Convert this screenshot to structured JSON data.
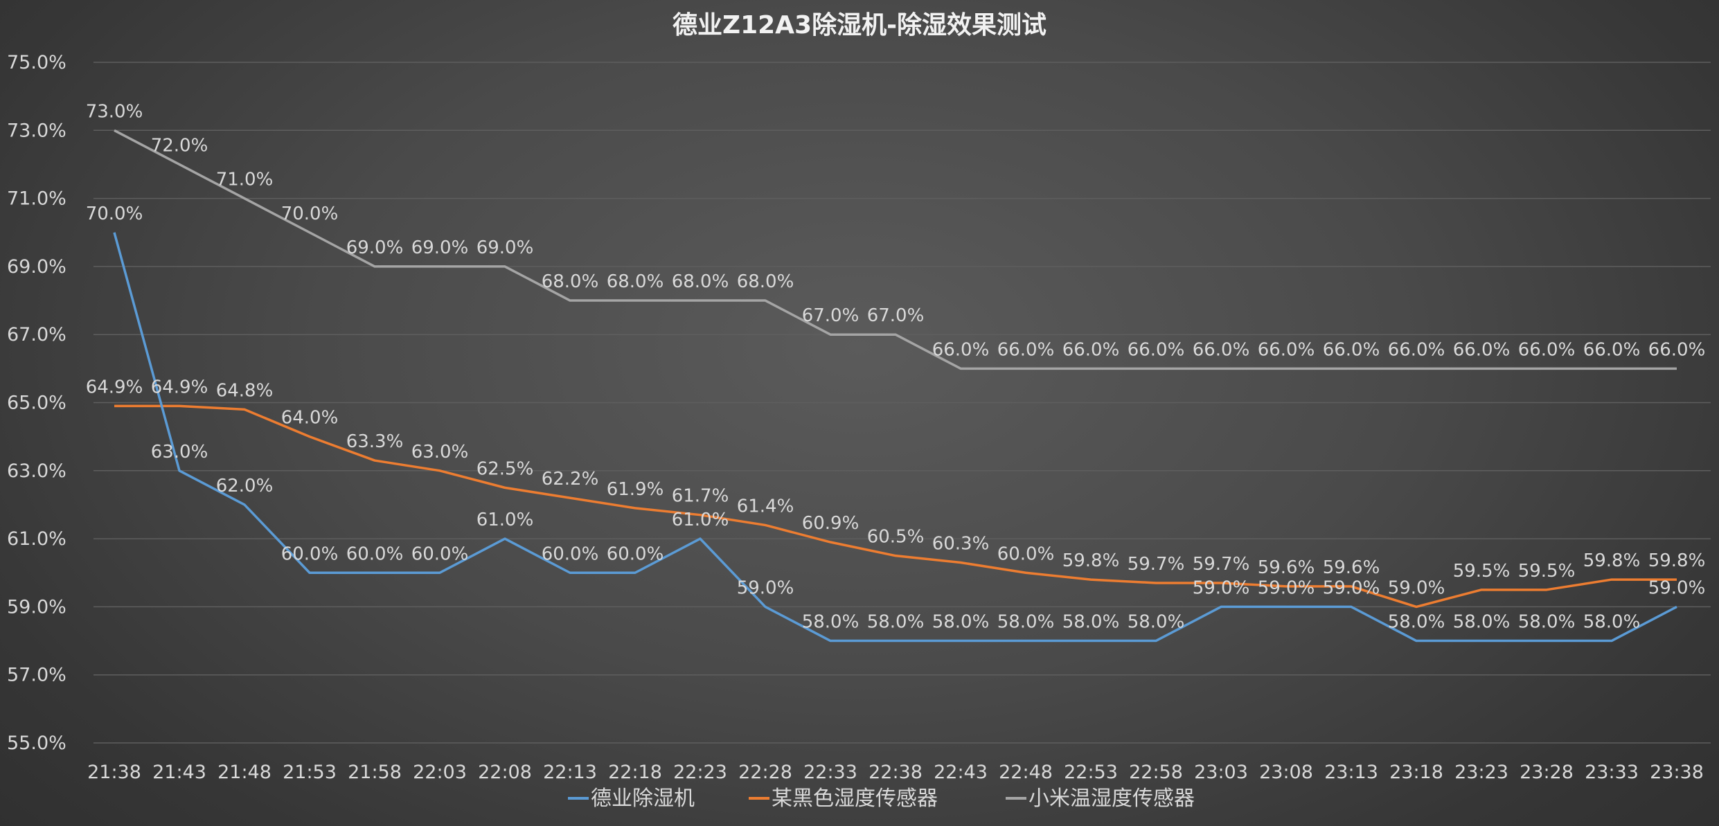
{
  "chart_data": {
    "type": "line",
    "title": "德业Z12A3除湿机-除湿效果测试",
    "x": [
      "21:38",
      "21:43",
      "21:48",
      "21:53",
      "21:58",
      "22:03",
      "22:08",
      "22:13",
      "22:18",
      "22:23",
      "22:28",
      "22:33",
      "22:38",
      "22:43",
      "22:48",
      "22:53",
      "22:58",
      "23:03",
      "23:08",
      "23:13",
      "23:18",
      "23:23",
      "23:28",
      "23:33",
      "23:38"
    ],
    "y_ticks": [
      "75.0%",
      "73.0%",
      "71.0%",
      "69.0%",
      "67.0%",
      "65.0%",
      "63.0%",
      "61.0%",
      "59.0%",
      "57.0%",
      "55.0%"
    ],
    "ylim": [
      55,
      75
    ],
    "y_unit": "%",
    "grid": true,
    "legend_position": "bottom",
    "series": [
      {
        "name": "德业除湿机",
        "color": "#5b9bd5",
        "values": [
          70.0,
          63.0,
          62.0,
          60.0,
          60.0,
          60.0,
          61.0,
          60.0,
          60.0,
          61.0,
          59.0,
          58.0,
          58.0,
          58.0,
          58.0,
          58.0,
          58.0,
          59.0,
          59.0,
          59.0,
          58.0,
          58.0,
          58.0,
          58.0,
          59.0
        ]
      },
      {
        "name": "某黑色湿度传感器",
        "color": "#ed7d31",
        "values": [
          64.9,
          64.9,
          64.8,
          64.0,
          63.3,
          63.0,
          62.5,
          62.2,
          61.9,
          61.7,
          61.4,
          60.9,
          60.5,
          60.3,
          60.0,
          59.8,
          59.7,
          59.7,
          59.6,
          59.6,
          59.0,
          59.5,
          59.5,
          59.8,
          59.8
        ]
      },
      {
        "name": "小米温湿度传感器",
        "color": "#a5a5a5",
        "values": [
          73.0,
          72.0,
          71.0,
          70.0,
          69.0,
          69.0,
          69.0,
          68.0,
          68.0,
          68.0,
          68.0,
          67.0,
          67.0,
          66.0,
          66.0,
          66.0,
          66.0,
          66.0,
          66.0,
          66.0,
          66.0,
          66.0,
          66.0,
          66.0,
          66.0
        ]
      }
    ]
  }
}
